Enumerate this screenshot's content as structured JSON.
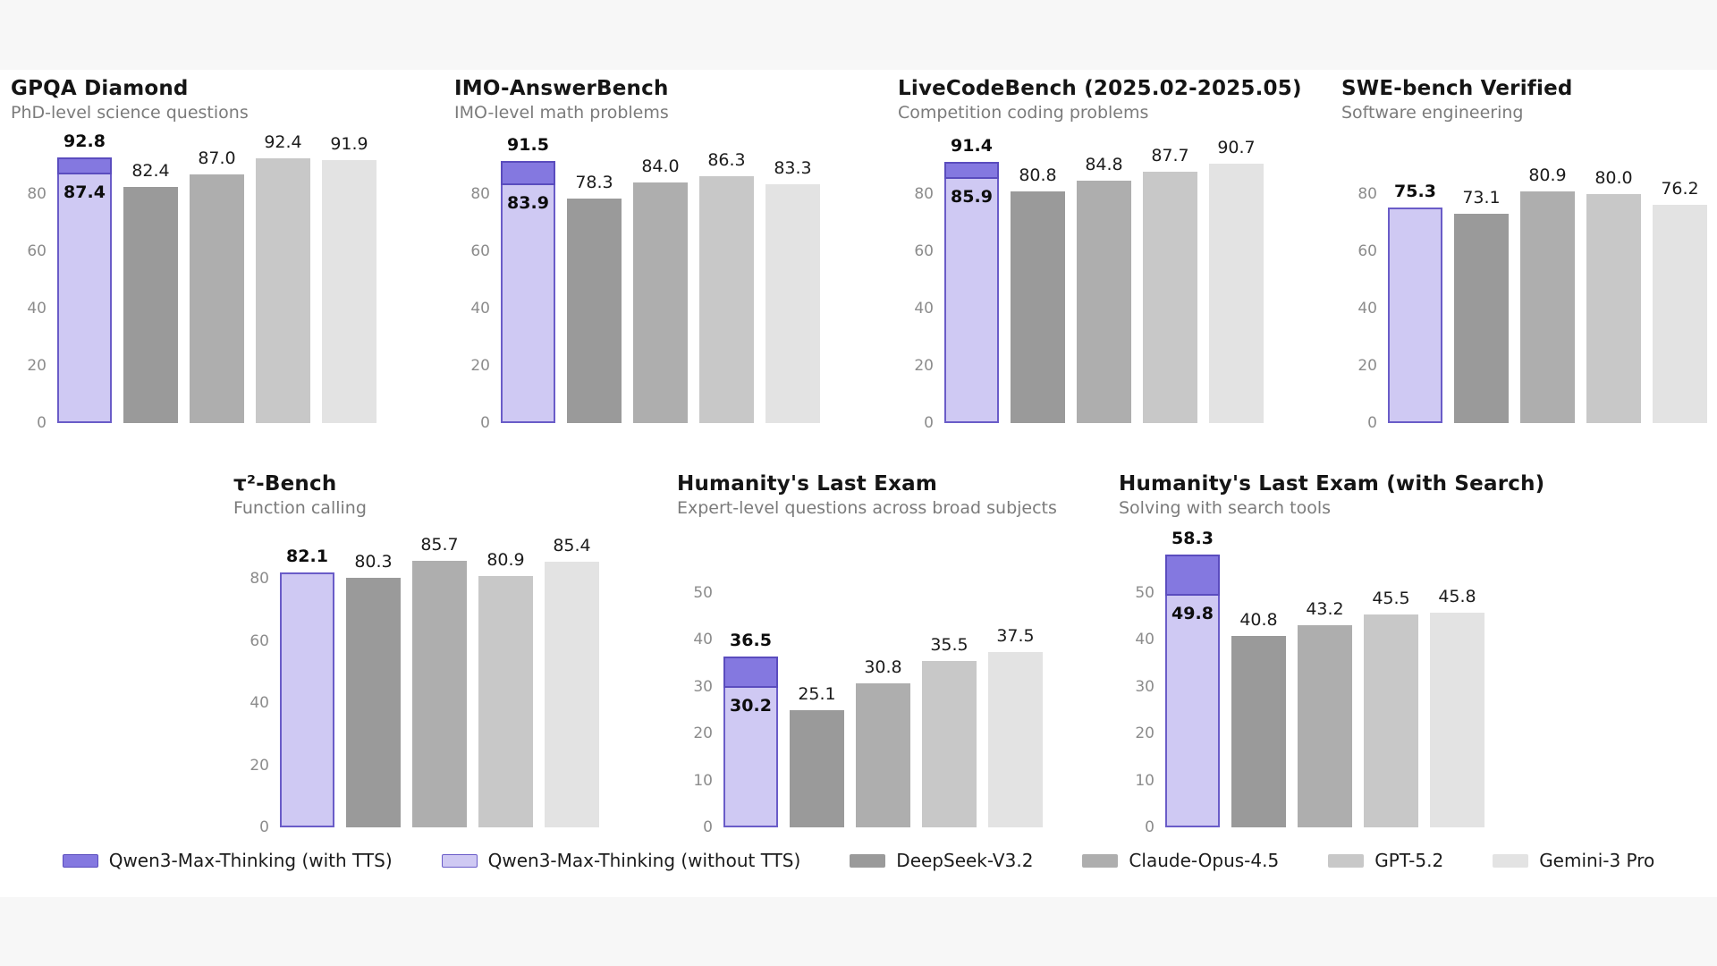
{
  "page": {
    "background": "#ffffff",
    "band_color": "#f7f7f7"
  },
  "colors": {
    "qwen_with_tts": "#8478e0",
    "qwen_border": "#5a4cbe",
    "qwen_without_tts": "#cfc9f3",
    "qwen_without_border": "#6a5cc8",
    "deepseek": "#9a9a9a",
    "claude": "#aeaeae",
    "gpt": "#c8c8c8",
    "gemini": "#e3e3e3",
    "tick_text": "#8c8c8c",
    "subtitle_text": "#7b7b7b",
    "title_text": "#151515"
  },
  "legend": {
    "items": [
      {
        "label": "Qwen3-Max-Thinking (with TTS)",
        "color_key": "qwen_with_tts",
        "border_key": "qwen_border"
      },
      {
        "label": "Qwen3-Max-Thinking (without TTS)",
        "color_key": "qwen_without_tts",
        "border_key": "qwen_without_border"
      },
      {
        "label": "DeepSeek-V3.2",
        "color_key": "deepseek"
      },
      {
        "label": "Claude-Opus-4.5",
        "color_key": "claude"
      },
      {
        "label": "GPT-5.2",
        "color_key": "gpt"
      },
      {
        "label": "Gemini-3 Pro",
        "color_key": "gemini"
      }
    ]
  },
  "chart_data": [
    {
      "type": "bar",
      "title": "GPQA Diamond",
      "subtitle": "PhD-level science questions",
      "ylim": [
        0,
        100
      ],
      "yticks": [
        0,
        20,
        40,
        60,
        80
      ],
      "grid": false,
      "series": [
        {
          "name": "Qwen3-Max-Thinking (with TTS)",
          "value": 92.8
        },
        {
          "name": "Qwen3-Max-Thinking (without TTS)",
          "value": 87.4
        },
        {
          "name": "DeepSeek-V3.2",
          "value": 82.4
        },
        {
          "name": "Claude-Opus-4.5",
          "value": 87.0
        },
        {
          "name": "GPT-5.2",
          "value": 92.4
        },
        {
          "name": "Gemini-3 Pro",
          "value": 91.9
        }
      ]
    },
    {
      "type": "bar",
      "title": "IMO-AnswerBench",
      "subtitle": "IMO-level math problems",
      "ylim": [
        0,
        100
      ],
      "yticks": [
        0,
        20,
        40,
        60,
        80
      ],
      "grid": false,
      "series": [
        {
          "name": "Qwen3-Max-Thinking (with TTS)",
          "value": 91.5
        },
        {
          "name": "Qwen3-Max-Thinking (without TTS)",
          "value": 83.9
        },
        {
          "name": "DeepSeek-V3.2",
          "value": 78.3
        },
        {
          "name": "Claude-Opus-4.5",
          "value": 84.0
        },
        {
          "name": "GPT-5.2",
          "value": 86.3
        },
        {
          "name": "Gemini-3 Pro",
          "value": 83.3
        }
      ]
    },
    {
      "type": "bar",
      "title": "LiveCodeBench (2025.02-2025.05)",
      "subtitle": "Competition coding problems",
      "ylim": [
        0,
        100
      ],
      "yticks": [
        0,
        20,
        40,
        60,
        80
      ],
      "grid": false,
      "series": [
        {
          "name": "Qwen3-Max-Thinking (with TTS)",
          "value": 91.4
        },
        {
          "name": "Qwen3-Max-Thinking (without TTS)",
          "value": 85.9
        },
        {
          "name": "DeepSeek-V3.2",
          "value": 80.8
        },
        {
          "name": "Claude-Opus-4.5",
          "value": 84.8
        },
        {
          "name": "GPT-5.2",
          "value": 87.7
        },
        {
          "name": "Gemini-3 Pro",
          "value": 90.7
        }
      ]
    },
    {
      "type": "bar",
      "title": "SWE-bench Verified",
      "subtitle": "Software engineering",
      "ylim": [
        0,
        100
      ],
      "yticks": [
        0,
        20,
        40,
        60,
        80
      ],
      "grid": false,
      "series": [
        {
          "name": "Qwen3-Max-Thinking (with TTS)",
          "value": null
        },
        {
          "name": "Qwen3-Max-Thinking (without TTS)",
          "value": 75.3
        },
        {
          "name": "DeepSeek-V3.2",
          "value": 73.1
        },
        {
          "name": "Claude-Opus-4.5",
          "value": 80.9
        },
        {
          "name": "GPT-5.2",
          "value": 80.0
        },
        {
          "name": "Gemini-3 Pro",
          "value": 76.2
        }
      ]
    },
    {
      "type": "bar",
      "title": "τ²-Bench",
      "subtitle": "Function calling",
      "ylim": [
        0,
        95
      ],
      "yticks": [
        0,
        20,
        40,
        60,
        80
      ],
      "grid": false,
      "series": [
        {
          "name": "Qwen3-Max-Thinking (with TTS)",
          "value": null
        },
        {
          "name": "Qwen3-Max-Thinking (without TTS)",
          "value": 82.1
        },
        {
          "name": "DeepSeek-V3.2",
          "value": 80.3
        },
        {
          "name": "Claude-Opus-4.5",
          "value": 85.7
        },
        {
          "name": "GPT-5.2",
          "value": 80.9
        },
        {
          "name": "Gemini-3 Pro",
          "value": 85.4
        }
      ]
    },
    {
      "type": "bar",
      "title": "Humanity's Last Exam",
      "subtitle": "Expert-level questions across broad subjects",
      "ylim": [
        0,
        63
      ],
      "yticks": [
        0,
        10,
        20,
        30,
        40,
        50
      ],
      "grid": false,
      "series": [
        {
          "name": "Qwen3-Max-Thinking (with TTS)",
          "value": 36.5
        },
        {
          "name": "Qwen3-Max-Thinking (without TTS)",
          "value": 30.2
        },
        {
          "name": "DeepSeek-V3.2",
          "value": 25.1
        },
        {
          "name": "Claude-Opus-4.5",
          "value": 30.8
        },
        {
          "name": "GPT-5.2",
          "value": 35.5
        },
        {
          "name": "Gemini-3 Pro",
          "value": 37.5
        }
      ]
    },
    {
      "type": "bar",
      "title": "Humanity's Last Exam (with Search)",
      "subtitle": "Solving with search tools",
      "ylim": [
        0,
        63
      ],
      "yticks": [
        0,
        10,
        20,
        30,
        40,
        50
      ],
      "grid": false,
      "series": [
        {
          "name": "Qwen3-Max-Thinking (with TTS)",
          "value": 58.3
        },
        {
          "name": "Qwen3-Max-Thinking (without TTS)",
          "value": 49.8
        },
        {
          "name": "DeepSeek-V3.2",
          "value": 40.8
        },
        {
          "name": "Claude-Opus-4.5",
          "value": 43.2
        },
        {
          "name": "GPT-5.2",
          "value": 45.5
        },
        {
          "name": "Gemini-3 Pro",
          "value": 45.8
        }
      ]
    }
  ]
}
